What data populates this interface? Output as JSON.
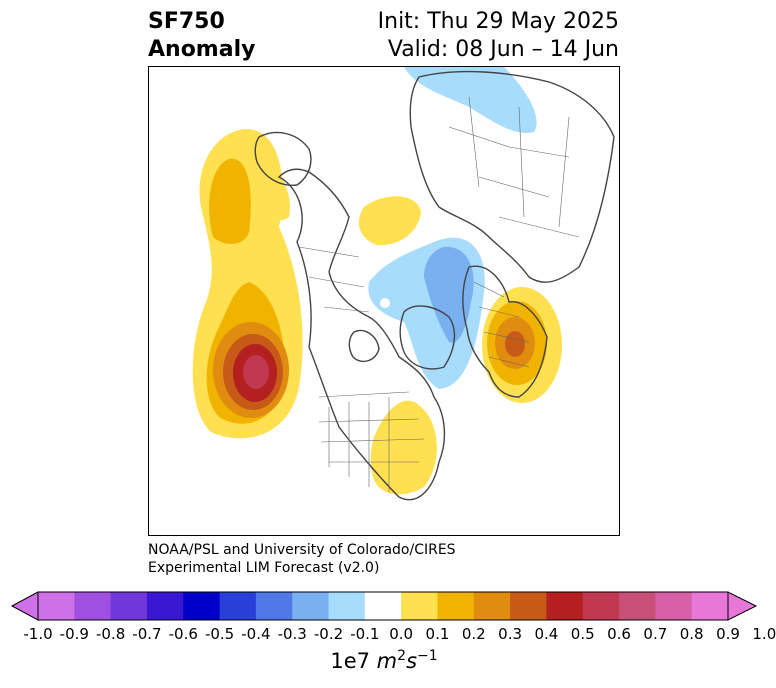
{
  "title": {
    "line1": "SF750",
    "line2": "Anomaly"
  },
  "init": "Init: Thu 29 May 2025",
  "valid": "Valid: 08 Jun – 14 Jun",
  "credit": {
    "line1": "NOAA/PSL and University of Colorado/CIRES",
    "line2": "Experimental LIM Forecast (v2.0)"
  },
  "colorbar": {
    "ticks": [
      "-1.0",
      "-0.9",
      "-0.8",
      "-0.7",
      "-0.6",
      "-0.5",
      "-0.4",
      "-0.3",
      "-0.2",
      "-0.1",
      "0.0",
      "0.1",
      "0.2",
      "0.3",
      "0.4",
      "0.5",
      "0.6",
      "0.7",
      "0.8",
      "0.9",
      "1.0"
    ],
    "colors": [
      "#d070e8",
      "#a050e0",
      "#7038d8",
      "#3818d0",
      "#0000c8",
      "#2840d8",
      "#5078e8",
      "#78b0f0",
      "#a8dcfc",
      "#ffffff",
      "#ffe050",
      "#f0b400",
      "#e08c10",
      "#c85a18",
      "#b42020",
      "#c03850",
      "#c85078",
      "#d860a8",
      "#e878d8"
    ],
    "under_color": "#d070e8",
    "over_color": "#e878d8",
    "units_prefix": "1e7 ",
    "units_m": "m",
    "units_m_exp": "2",
    "units_s": "s",
    "units_s_exp": "−1"
  },
  "map": {
    "anomaly_colors": {
      "pos01": "#ffe050",
      "pos02": "#f0b400",
      "pos03": "#e08c10",
      "pos04": "#c85a18",
      "pos05": "#b42020",
      "pos06": "#c03850",
      "neg01": "#a8dcfc",
      "neg02": "#78b0f0"
    }
  }
}
